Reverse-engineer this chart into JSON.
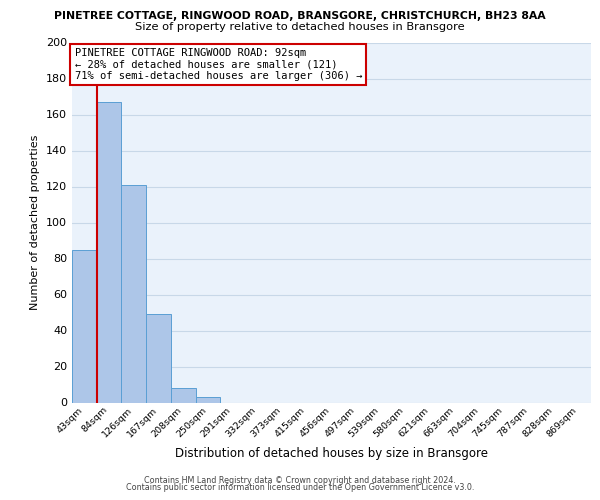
{
  "title1": "PINETREE COTTAGE, RINGWOOD ROAD, BRANSGORE, CHRISTCHURCH, BH23 8AA",
  "title2": "Size of property relative to detached houses in Bransgore",
  "xlabel": "Distribution of detached houses by size in Bransgore",
  "ylabel": "Number of detached properties",
  "bar_labels": [
    "43sqm",
    "84sqm",
    "126sqm",
    "167sqm",
    "208sqm",
    "250sqm",
    "291sqm",
    "332sqm",
    "373sqm",
    "415sqm",
    "456sqm",
    "497sqm",
    "539sqm",
    "580sqm",
    "621sqm",
    "663sqm",
    "704sqm",
    "745sqm",
    "787sqm",
    "828sqm",
    "869sqm"
  ],
  "bar_values": [
    85,
    167,
    121,
    49,
    8,
    3,
    0,
    0,
    0,
    0,
    0,
    0,
    0,
    0,
    0,
    0,
    0,
    0,
    0,
    0,
    0
  ],
  "bar_color": "#adc6e8",
  "bar_edge_color": "#5a9fd4",
  "vline_x": 0.5,
  "vline_color": "#cc0000",
  "annotation_title": "PINETREE COTTAGE RINGWOOD ROAD: 92sqm",
  "annotation_line2": "← 28% of detached houses are smaller (121)",
  "annotation_line3": "71% of semi-detached houses are larger (306) →",
  "annotation_box_color": "#ffffff",
  "annotation_box_edge": "#cc0000",
  "ylim": [
    0,
    200
  ],
  "yticks": [
    0,
    20,
    40,
    60,
    80,
    100,
    120,
    140,
    160,
    180,
    200
  ],
  "grid_color": "#c8d8e8",
  "background_color": "#eaf2fb",
  "footer1": "Contains HM Land Registry data © Crown copyright and database right 2024.",
  "footer2": "Contains public sector information licensed under the Open Government Licence v3.0."
}
